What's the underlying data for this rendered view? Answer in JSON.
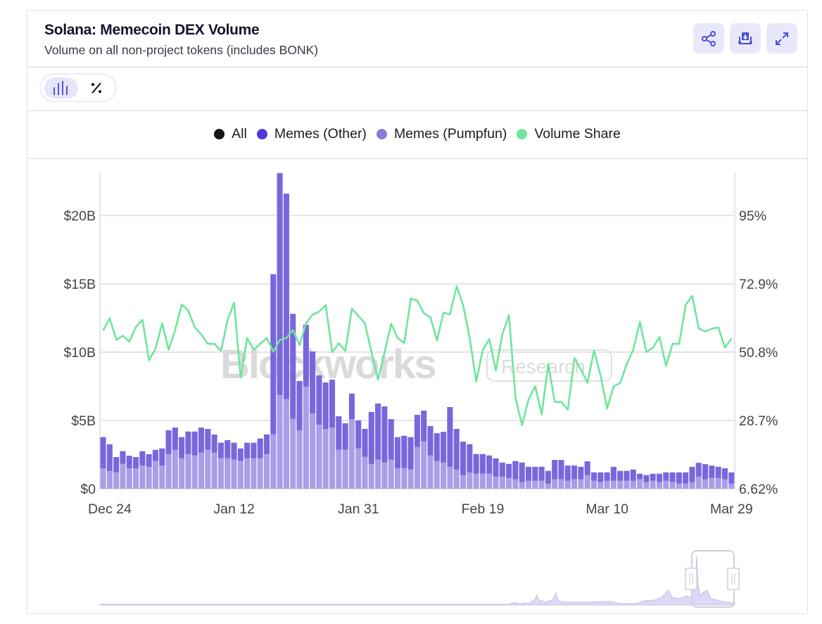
{
  "header": {
    "title": "Solana: Memecoin DEX Volume",
    "subtitle": "Volume on all non-project tokens (includes BONK)",
    "buttons": [
      {
        "name": "share",
        "icon": "share-icon"
      },
      {
        "name": "download",
        "icon": "download-icon"
      },
      {
        "name": "expand",
        "icon": "expand-icon"
      }
    ]
  },
  "view_toggle": {
    "options": [
      {
        "name": "absolute",
        "icon": "bar-chart-icon",
        "active": true
      },
      {
        "name": "percent",
        "icon": "percent-icon",
        "active": false
      }
    ]
  },
  "legend": [
    {
      "label": "All",
      "color": "#141414"
    },
    {
      "label": "Memes (Other)",
      "color": "#5535d4"
    },
    {
      "label": "Memes (Pumpfun)",
      "color": "#8a7ad9"
    },
    {
      "label": "Volume Share",
      "color": "#6fe59e"
    }
  ],
  "watermark": {
    "brand": "Blockworks",
    "tag": "Research"
  },
  "colors": {
    "other_bar": "#7a66dc",
    "pumpfun_bar": "#a99ee7",
    "line": "#6fe59e",
    "grid": "#e4e4ea",
    "axis_text": "#444448"
  },
  "chart_data": {
    "type": "bar",
    "stacked": true,
    "title": "Solana: Memecoin DEX Volume",
    "subtitle": "Volume on all non-project tokens (includes BONK)",
    "xlabel": "",
    "ylabel": "",
    "grid": true,
    "legend_position": "top",
    "ylim": [
      0,
      23.14
    ],
    "y_unit": "$B",
    "yticks": [
      "$0",
      "$5B",
      "$10B",
      "$15B",
      "$20B"
    ],
    "ytick_values": [
      0,
      5,
      10,
      15,
      20
    ],
    "y2lim": [
      6.62,
      108.9
    ],
    "y2ticks": [
      "6.62%",
      "28.7%",
      "50.8%",
      "72.9%",
      "95%"
    ],
    "y2tick_values": [
      6.62,
      28.7,
      50.8,
      72.9,
      95
    ],
    "xtick_labels": [
      "Dec 24",
      "Jan 12",
      "Jan 31",
      "Feb 19",
      "Mar 10",
      "Mar 29"
    ],
    "categories": [
      "Dec 23",
      "Dec 24",
      "Dec 25",
      "Dec 26",
      "Dec 27",
      "Dec 28",
      "Dec 29",
      "Dec 30",
      "Dec 31",
      "Jan 1",
      "Jan 2",
      "Jan 3",
      "Jan 4",
      "Jan 5",
      "Jan 6",
      "Jan 7",
      "Jan 8",
      "Jan 9",
      "Jan 10",
      "Jan 11",
      "Jan 12",
      "Jan 13",
      "Jan 14",
      "Jan 15",
      "Jan 16",
      "Jan 17",
      "Jan 18",
      "Jan 19",
      "Jan 20",
      "Jan 21",
      "Jan 22",
      "Jan 23",
      "Jan 24",
      "Jan 25",
      "Jan 26",
      "Jan 27",
      "Jan 28",
      "Jan 29",
      "Jan 30",
      "Jan 31",
      "Feb 1",
      "Feb 2",
      "Feb 3",
      "Feb 4",
      "Feb 5",
      "Feb 6",
      "Feb 7",
      "Feb 8",
      "Feb 9",
      "Feb 10",
      "Feb 11",
      "Feb 12",
      "Feb 13",
      "Feb 14",
      "Feb 15",
      "Feb 16",
      "Feb 17",
      "Feb 18",
      "Feb 19",
      "Feb 20",
      "Feb 21",
      "Feb 22",
      "Feb 23",
      "Feb 24",
      "Feb 25",
      "Feb 26",
      "Feb 27",
      "Feb 28",
      "Mar 1",
      "Mar 2",
      "Mar 3",
      "Mar 4",
      "Mar 5",
      "Mar 6",
      "Mar 7",
      "Mar 8",
      "Mar 9",
      "Mar 10",
      "Mar 11",
      "Mar 12",
      "Mar 13",
      "Mar 14",
      "Mar 15",
      "Mar 16",
      "Mar 17",
      "Mar 18",
      "Mar 19",
      "Mar 20",
      "Mar 21",
      "Mar 22",
      "Mar 23",
      "Mar 24",
      "Mar 25",
      "Mar 26",
      "Mar 27",
      "Mar 28",
      "Mar 29"
    ],
    "series": [
      {
        "name": "Memes (Pumpfun)",
        "type": "bar",
        "axis": "left",
        "values": [
          1.49,
          1.31,
          1.2,
          1.82,
          1.49,
          1.49,
          1.7,
          1.6,
          2.03,
          1.7,
          2.53,
          2.85,
          2.23,
          2.53,
          2.44,
          2.64,
          2.85,
          2.64,
          2.23,
          2.23,
          2.13,
          2.03,
          2.23,
          2.23,
          2.23,
          2.53,
          3.98,
          6.86,
          6.56,
          5.12,
          4.28,
          7.47,
          5.52,
          4.69,
          4.38,
          4.48,
          2.85,
          2.85,
          5.1,
          2.95,
          2.34,
          1.82,
          2.13,
          1.92,
          2.13,
          1.51,
          1.51,
          1.41,
          3.06,
          3.47,
          2.44,
          2.03,
          1.92,
          1.61,
          1.41,
          0.99,
          1.2,
          1.1,
          1.1,
          1.1,
          0.89,
          0.89,
          0.79,
          0.69,
          0.48,
          0.58,
          0.58,
          0.58,
          0.38,
          0.69,
          0.69,
          0.58,
          0.69,
          0.69,
          0.99,
          0.58,
          0.48,
          0.58,
          0.58,
          0.58,
          0.58,
          0.58,
          0.69,
          0.48,
          0.58,
          0.48,
          0.58,
          0.48,
          0.38,
          0.38,
          0.48,
          0.89,
          0.69,
          0.79,
          0.79,
          0.69,
          0.38
        ]
      },
      {
        "name": "Memes (Other)",
        "type": "bar",
        "axis": "left",
        "values": [
          2.29,
          1.95,
          1.12,
          0.93,
          0.93,
          0.83,
          1.05,
          0.93,
          0.82,
          1.25,
          1.75,
          1.63,
          1.55,
          1.66,
          1.75,
          1.84,
          1.53,
          1.33,
          1.14,
          1.33,
          1.24,
          0.92,
          1.14,
          1.14,
          1.45,
          1.45,
          11.72,
          16.24,
          15.04,
          7.68,
          3.61,
          4.53,
          4.53,
          3.61,
          3.4,
          3.51,
          2.46,
          1.94,
          1.86,
          2.05,
          2.04,
          3.8,
          4.11,
          4.11,
          2.97,
          2.27,
          2.37,
          2.37,
          2.35,
          2.25,
          2.15,
          2.04,
          2.25,
          4.37,
          2.97,
          2.46,
          2.06,
          1.44,
          1.44,
          1.34,
          1.34,
          1.03,
          1.03,
          1.34,
          1.44,
          1.03,
          1.03,
          1.03,
          0.93,
          1.42,
          1.42,
          1.12,
          1.01,
          0.92,
          1.02,
          0.62,
          0.72,
          0.62,
          1.03,
          0.73,
          0.73,
          0.83,
          0.41,
          0.52,
          0.52,
          0.62,
          0.62,
          0.72,
          0.82,
          0.82,
          1.13,
          1.01,
          1.11,
          0.91,
          0.82,
          0.81,
          0.82
        ]
      },
      {
        "name": "Volume Share",
        "type": "line",
        "axis": "right",
        "unit": "%",
        "values": [
          57.8,
          61.8,
          54.8,
          56.1,
          54.2,
          59.0,
          61.3,
          48.2,
          51.9,
          60.1,
          51.6,
          58.0,
          66.2,
          64.3,
          58.8,
          56.5,
          53.5,
          53.5,
          51.2,
          61.1,
          66.8,
          42.6,
          55.4,
          51.6,
          53.5,
          55.4,
          51.0,
          54.8,
          55.4,
          58.0,
          53.1,
          60.1,
          63.0,
          63.9,
          66.0,
          50.8,
          53.7,
          51.2,
          64.9,
          62.6,
          60.1,
          50.8,
          41.9,
          50.8,
          60.0,
          55.4,
          53.7,
          68.1,
          67.5,
          63.4,
          62.1,
          54.6,
          63.6,
          63.1,
          72.1,
          66.0,
          55.4,
          41.3,
          51.6,
          55.0,
          44.9,
          56.7,
          62.8,
          36.0,
          27.2,
          35.6,
          39.8,
          30.7,
          47.0,
          34.7,
          34.7,
          32.2,
          48.9,
          45.1,
          40.9,
          51.4,
          43.2,
          32.6,
          39.8,
          40.8,
          47.0,
          51.6,
          60.6,
          50.8,
          52.3,
          55.7,
          46.3,
          53.5,
          53.5,
          66.1,
          69.0,
          58.4,
          57.5,
          58.4,
          58.8,
          52.3,
          55.2
        ]
      }
    ]
  }
}
